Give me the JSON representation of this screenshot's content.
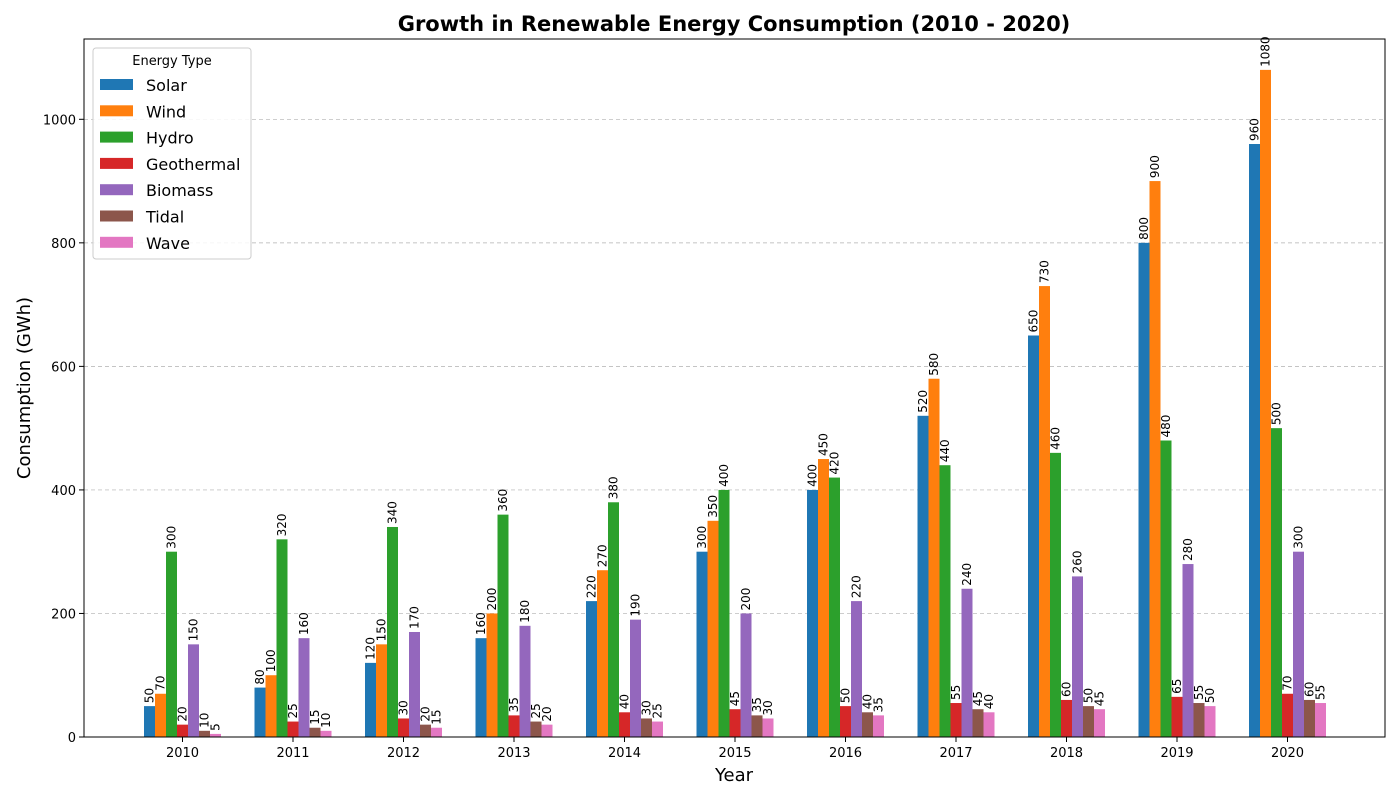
{
  "chart_data": {
    "type": "bar",
    "title": "Growth in Renewable Energy Consumption (2010 - 2020)",
    "xlabel": "Year",
    "ylabel": "Consumption (GWh)",
    "ylim": [
      0,
      1130
    ],
    "yticks": [
      0,
      200,
      400,
      600,
      800,
      1000
    ],
    "grid": "y-dashed",
    "legend_title": "Energy Type",
    "legend_position": "top-left",
    "categories": [
      "2010",
      "2011",
      "2012",
      "2013",
      "2014",
      "2015",
      "2016",
      "2017",
      "2018",
      "2019",
      "2020"
    ],
    "series": [
      {
        "name": "Solar",
        "color": "#1f77b4",
        "values": [
          50,
          80,
          120,
          160,
          220,
          300,
          400,
          520,
          650,
          800,
          960
        ]
      },
      {
        "name": "Wind",
        "color": "#ff7f0e",
        "values": [
          70,
          100,
          150,
          200,
          270,
          350,
          450,
          580,
          730,
          900,
          1080
        ]
      },
      {
        "name": "Hydro",
        "color": "#2ca02c",
        "values": [
          300,
          320,
          340,
          360,
          380,
          400,
          420,
          440,
          460,
          480,
          500
        ]
      },
      {
        "name": "Geothermal",
        "color": "#d62728",
        "values": [
          20,
          25,
          30,
          35,
          40,
          45,
          50,
          55,
          60,
          65,
          70
        ]
      },
      {
        "name": "Biomass",
        "color": "#9467bd",
        "values": [
          150,
          160,
          170,
          180,
          190,
          200,
          220,
          240,
          260,
          280,
          300
        ]
      },
      {
        "name": "Tidal",
        "color": "#8c564b",
        "values": [
          10,
          15,
          20,
          25,
          30,
          35,
          40,
          45,
          50,
          55,
          60
        ]
      },
      {
        "name": "Wave",
        "color": "#e377c2",
        "values": [
          5,
          10,
          15,
          20,
          25,
          30,
          35,
          40,
          45,
          50,
          55
        ]
      }
    ]
  }
}
